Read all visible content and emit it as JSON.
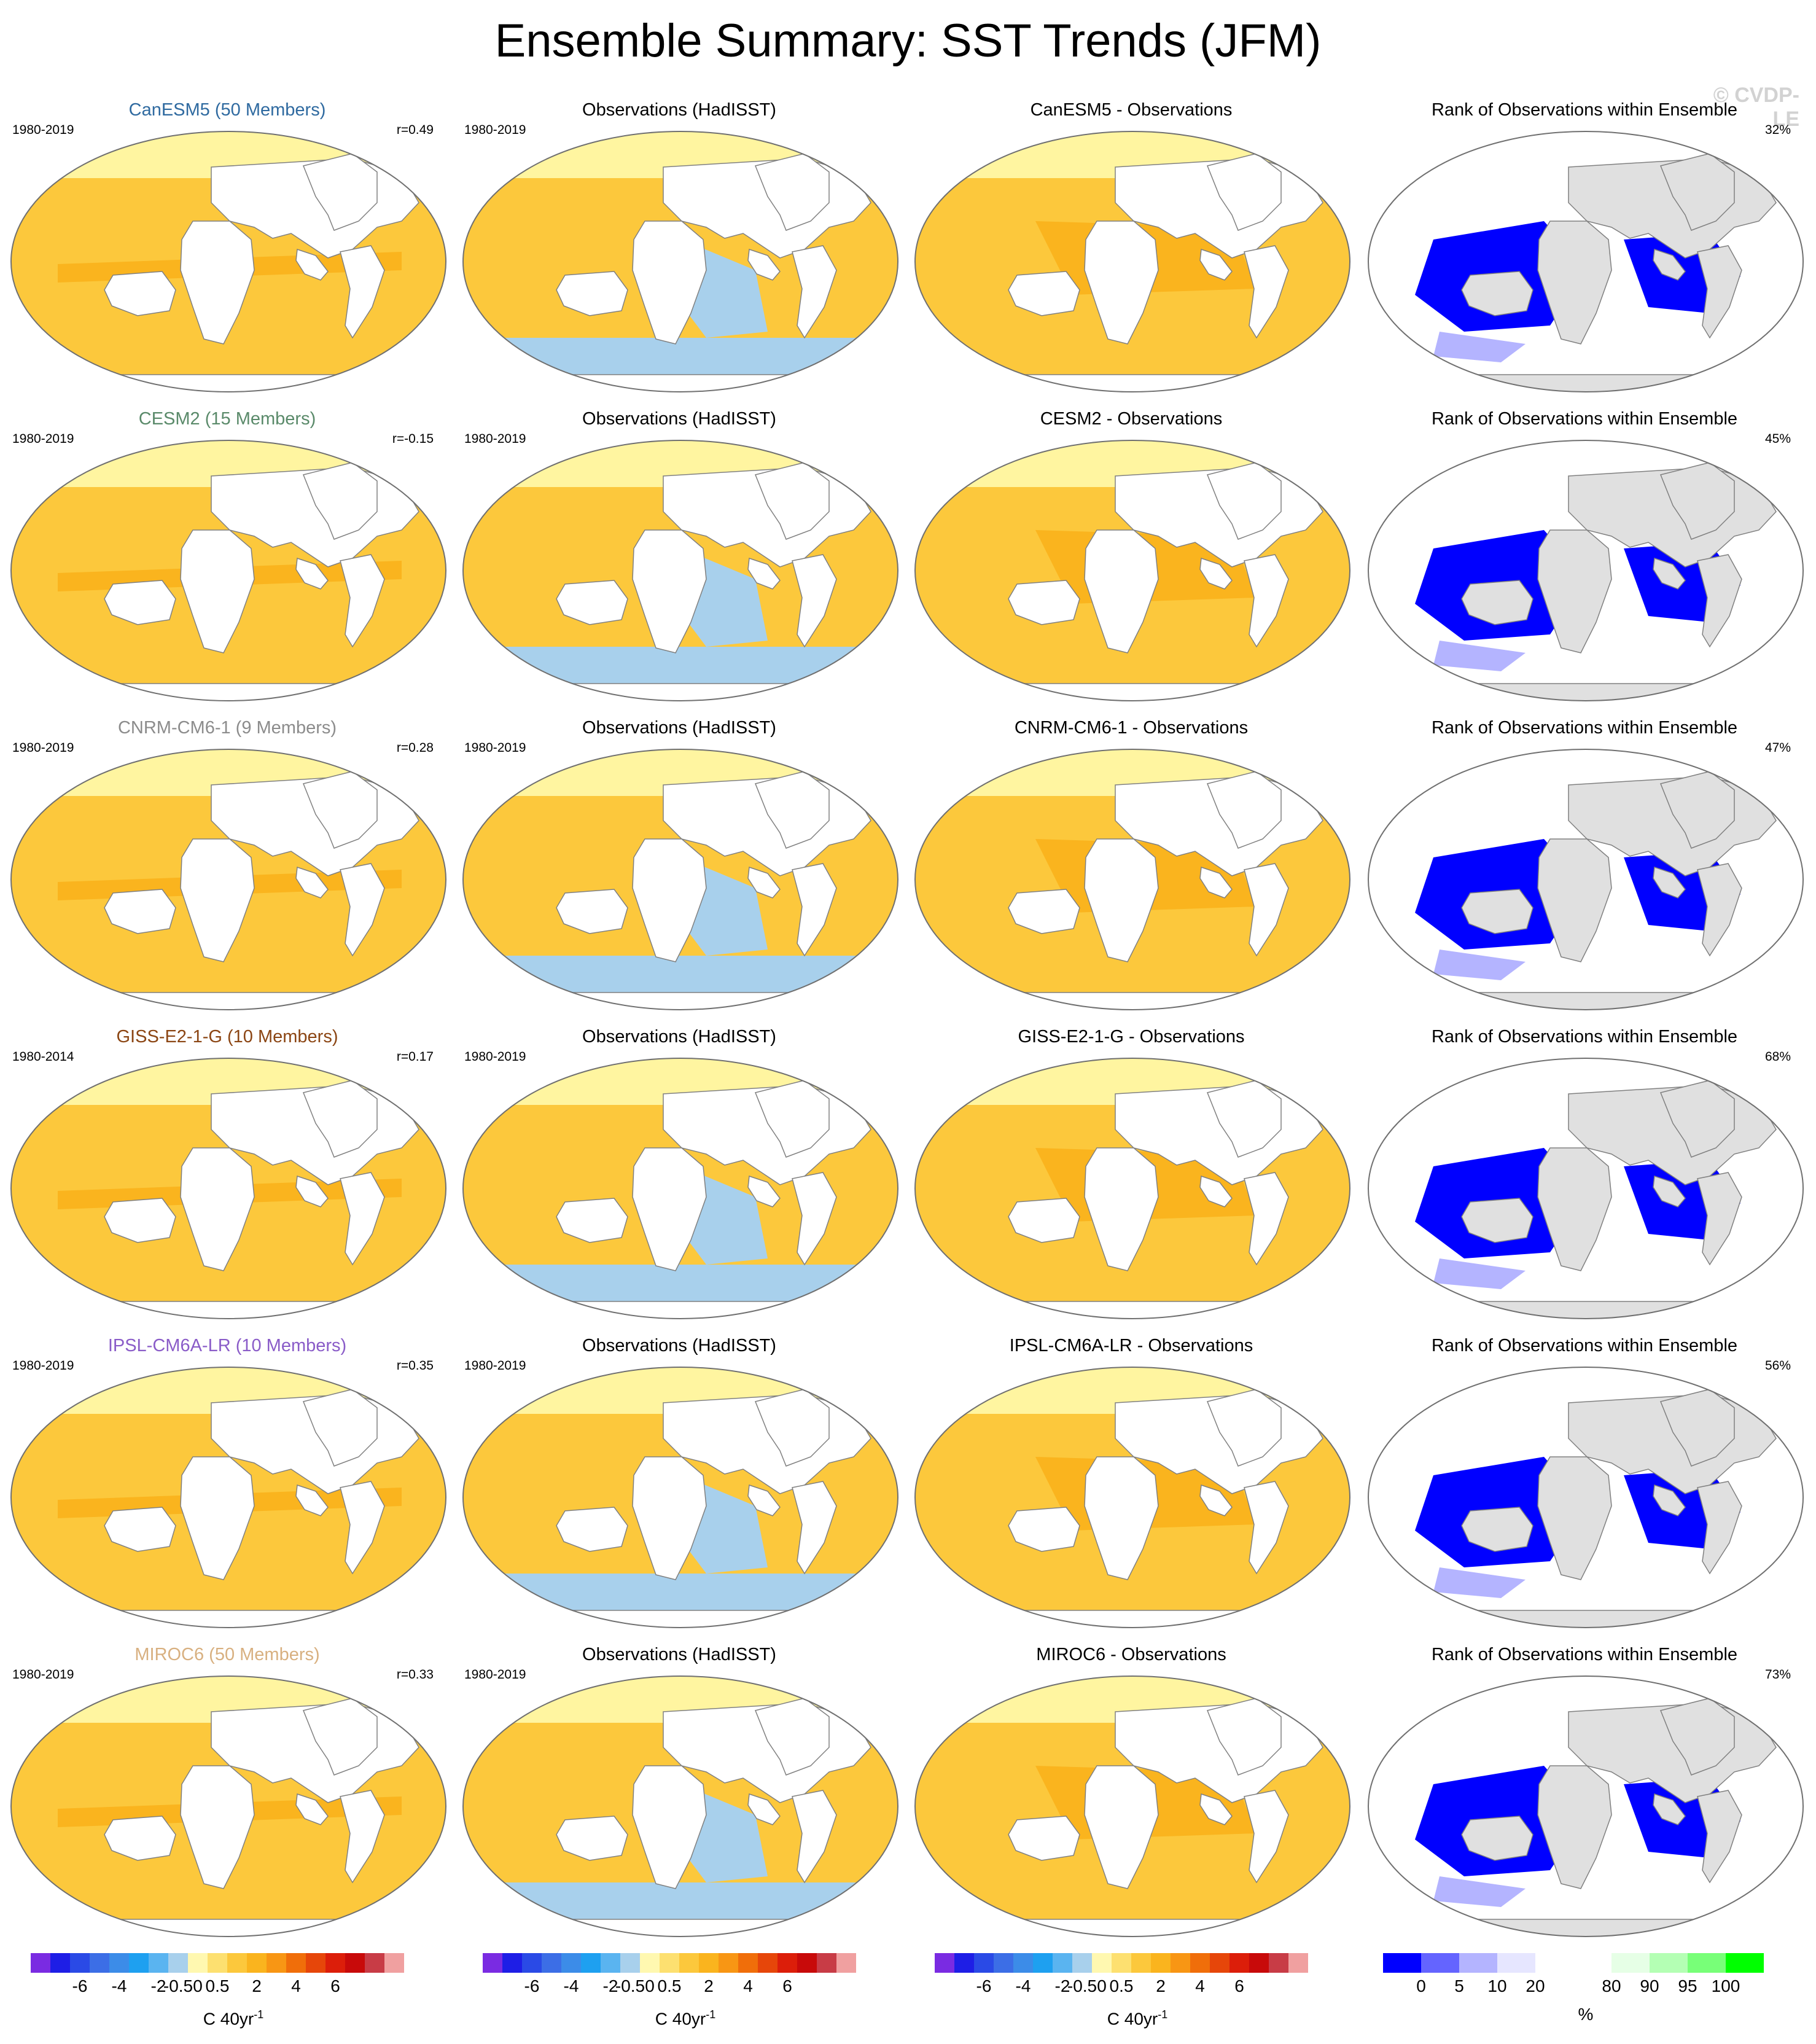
{
  "title": "Ensemble Summary: SST Trends (JFM)",
  "watermark": "© CVDP-LE",
  "colors": {
    "land_model": "#ffffff",
    "land_rank": "#e0e0e0",
    "coast": "#808080",
    "arctic_fill": "#fff5a0"
  },
  "rows": [
    {
      "model": "CanESM5 (50 Members)",
      "model_color": "#2f6aa0",
      "model_period": "1980-2019",
      "r": "r=0.49",
      "obs_title": "Observations (HadISST)",
      "obs_period": "1980-2019",
      "diff_title": "CanESM5 - Observations",
      "rank_title": "Rank of Observations within Ensemble",
      "rank_pct": "32%"
    },
    {
      "model": "CESM2 (15 Members)",
      "model_color": "#5a8a6a",
      "model_period": "1980-2019",
      "r": "r=-0.15",
      "obs_title": "Observations (HadISST)",
      "obs_period": "1980-2019",
      "diff_title": "CESM2 - Observations",
      "rank_title": "Rank of Observations within Ensemble",
      "rank_pct": "45%"
    },
    {
      "model": "CNRM-CM6-1 (9 Members)",
      "model_color": "#8c8c8c",
      "model_period": "1980-2019",
      "r": "r=0.28",
      "obs_title": "Observations (HadISST)",
      "obs_period": "1980-2019",
      "diff_title": "CNRM-CM6-1 - Observations",
      "rank_title": "Rank of Observations within Ensemble",
      "rank_pct": "47%"
    },
    {
      "model": "GISS-E2-1-G (10 Members)",
      "model_color": "#8b4513",
      "model_period": "1980-2014",
      "r": "r=0.17",
      "obs_title": "Observations (HadISST)",
      "obs_period": "1980-2019",
      "diff_title": "GISS-E2-1-G - Observations",
      "rank_title": "Rank of Observations within Ensemble",
      "rank_pct": "68%"
    },
    {
      "model": "IPSL-CM6A-LR (10 Members)",
      "model_color": "#8a5cc8",
      "model_period": "1980-2019",
      "r": "r=0.35",
      "obs_title": "Observations (HadISST)",
      "obs_period": "1980-2019",
      "diff_title": "IPSL-CM6A-LR - Observations",
      "rank_title": "Rank of Observations within Ensemble",
      "rank_pct": "56%"
    },
    {
      "model": "MIROC6 (50 Members)",
      "model_color": "#d8b080",
      "model_period": "1980-2019",
      "r": "r=0.33",
      "obs_title": "Observations (HadISST)",
      "obs_period": "1980-2019",
      "diff_title": "MIROC6 - Observations",
      "rank_title": "Rank of Observations within Ensemble",
      "rank_pct": "73%"
    }
  ],
  "trend_colorbar": {
    "colors": [
      "#7a2be2",
      "#1e1ee6",
      "#2a4ae6",
      "#3c6ee6",
      "#3c8ce8",
      "#1ea0f0",
      "#5ab4f0",
      "#a8d0ec",
      "#fff8b0",
      "#fde070",
      "#fcc83c",
      "#fab41e",
      "#f89614",
      "#f06e0a",
      "#e6460a",
      "#dc1e0a",
      "#c80a0a",
      "#c83c46",
      "#f0a0a0"
    ],
    "ticks": [
      "-6",
      "-4",
      "-2",
      "-0.5",
      "0",
      "0.5",
      "2",
      "4",
      "6"
    ],
    "units": "C 40yr",
    "units_sup": "-1"
  },
  "rank_colorbar": {
    "colors": [
      "#0000ff",
      "#6464ff",
      "#b4b4ff",
      "#e6e6ff",
      "#ffffff",
      "#ffffff",
      "#e6ffe6",
      "#b4ffb4",
      "#78ff78",
      "#00ff00"
    ],
    "ticks": [
      "0",
      "5",
      "10",
      "20",
      "80",
      "90",
      "95",
      "100"
    ],
    "units": "%"
  }
}
